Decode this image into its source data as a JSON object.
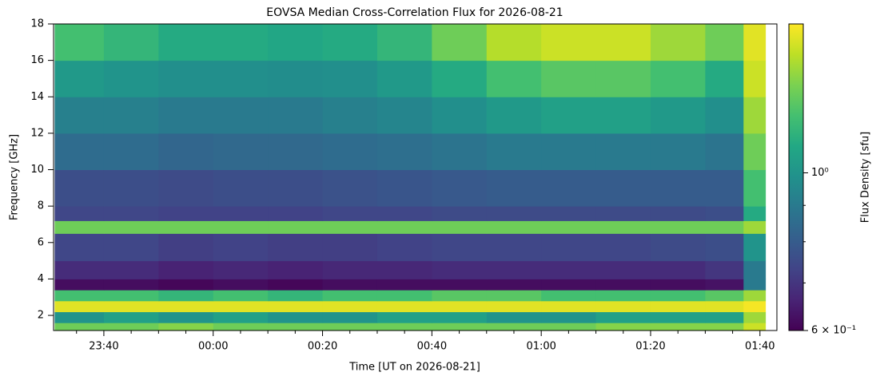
{
  "chart_data": {
    "type": "heatmap",
    "title": "EOVSA Median Cross-Correlation Flux for 2026-08-21",
    "xlabel": "Time [UT on 2026-08-21]",
    "ylabel": "Frequency [GHz]",
    "colorbar_label": "Flux Density [sfu]",
    "colormap": "viridis",
    "zscale": "log",
    "x": [
      "23:31",
      "23:40",
      "23:50",
      "00:00",
      "00:10",
      "00:20",
      "00:30",
      "00:40",
      "00:50",
      "01:00",
      "01:10",
      "01:20",
      "01:30",
      "01:37",
      "01:41"
    ],
    "y": [
      1.17,
      1.6,
      2.2,
      2.8,
      3.4,
      4.0,
      5.0,
      6.5,
      7.2,
      8,
      10,
      12,
      14,
      16,
      18
    ],
    "z": [
      [
        1.3,
        1.3,
        1.35,
        1.3,
        1.3,
        1.3,
        1.3,
        1.3,
        1.3,
        1.3,
        1.35,
        1.35,
        1.35,
        1.5
      ],
      [
        1.0,
        1.05,
        1.0,
        1.05,
        1.0,
        1.0,
        1.05,
        1.05,
        1.0,
        1.0,
        1.05,
        1.05,
        1.05,
        1.4
      ],
      [
        1.55,
        1.55,
        1.55,
        1.55,
        1.55,
        1.55,
        1.55,
        1.55,
        1.55,
        1.55,
        1.55,
        1.55,
        1.55,
        1.6
      ],
      [
        1.2,
        1.2,
        1.15,
        1.2,
        1.15,
        1.2,
        1.2,
        1.25,
        1.25,
        1.2,
        1.2,
        1.2,
        1.25,
        1.4
      ],
      [
        0.62,
        0.62,
        0.61,
        0.62,
        0.61,
        0.62,
        0.62,
        0.62,
        0.62,
        0.62,
        0.62,
        0.62,
        0.63,
        0.9
      ],
      [
        0.68,
        0.68,
        0.66,
        0.67,
        0.66,
        0.67,
        0.67,
        0.68,
        0.68,
        0.68,
        0.68,
        0.68,
        0.7,
        0.9
      ],
      [
        0.74,
        0.74,
        0.72,
        0.73,
        0.72,
        0.72,
        0.73,
        0.74,
        0.74,
        0.74,
        0.74,
        0.75,
        0.76,
        1.0
      ],
      [
        1.3,
        1.3,
        1.3,
        1.3,
        1.3,
        1.3,
        1.3,
        1.3,
        1.3,
        1.3,
        1.3,
        1.3,
        1.3,
        1.4
      ],
      [
        0.74,
        0.74,
        0.73,
        0.73,
        0.73,
        0.74,
        0.74,
        0.75,
        0.75,
        0.75,
        0.75,
        0.75,
        0.76,
        1.1
      ],
      [
        0.76,
        0.76,
        0.75,
        0.76,
        0.76,
        0.77,
        0.78,
        0.79,
        0.8,
        0.8,
        0.8,
        0.8,
        0.8,
        1.2
      ],
      [
        0.85,
        0.85,
        0.83,
        0.84,
        0.84,
        0.85,
        0.86,
        0.88,
        0.9,
        0.9,
        0.9,
        0.9,
        0.88,
        1.3
      ],
      [
        0.92,
        0.92,
        0.9,
        0.9,
        0.9,
        0.92,
        0.94,
        0.98,
        1.02,
        1.05,
        1.05,
        1.02,
        0.98,
        1.4
      ],
      [
        1.02,
        1.0,
        0.98,
        0.98,
        0.97,
        0.98,
        1.02,
        1.1,
        1.2,
        1.25,
        1.25,
        1.2,
        1.1,
        1.5
      ],
      [
        1.2,
        1.15,
        1.1,
        1.1,
        1.08,
        1.1,
        1.15,
        1.3,
        1.45,
        1.5,
        1.5,
        1.4,
        1.3,
        1.55
      ]
    ],
    "xlim": [
      "23:30:48",
      "01:43:06"
    ],
    "xticks": [
      "23:40",
      "00:00",
      "00:20",
      "00:40",
      "01:00",
      "01:20",
      "01:40"
    ],
    "xminorticks": [
      "23:35",
      "23:45",
      "23:50",
      "23:55",
      "00:05",
      "00:10",
      "00:15",
      "00:25",
      "00:30",
      "00:35",
      "00:45",
      "00:50",
      "00:55",
      "01:05",
      "01:10",
      "01:15",
      "01:25",
      "01:30",
      "01:35"
    ],
    "ylim": [
      1.17,
      18
    ],
    "yticks": [
      2,
      4,
      6,
      8,
      10,
      12,
      14,
      16,
      18
    ],
    "zlim": [
      0.6,
      1.62
    ],
    "zticks": [
      {
        "value": 0.6,
        "label": "6 × 10⁻¹"
      },
      {
        "value": 1,
        "label": "10⁰"
      }
    ],
    "zminorticks": [
      0.7,
      0.8,
      0.9
    ]
  }
}
